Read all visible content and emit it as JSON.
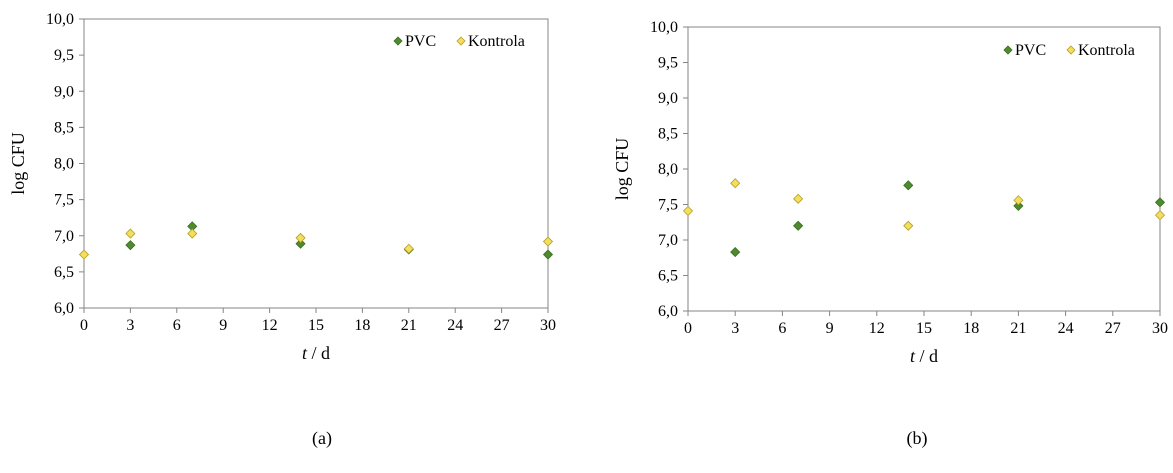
{
  "chart_data": [
    {
      "panel_label": "(a)",
      "type": "scatter",
      "xlabel_italic": "t",
      "xlabel_rest": " / d",
      "ylabel": "log CFU",
      "xlim": [
        0,
        30
      ],
      "ylim": [
        6.0,
        10.0
      ],
      "x_ticks": [
        "0",
        "3",
        "6",
        "9",
        "12",
        "15",
        "18",
        "21",
        "24",
        "27",
        "30"
      ],
      "y_ticks": [
        "6,0",
        "6,5",
        "7,0",
        "7,5",
        "8,0",
        "8,5",
        "9,0",
        "9,5",
        "10,0"
      ],
      "grid": false,
      "legend_position": "top-right",
      "series": [
        {
          "name": "PVC",
          "color": "#4e8a2e",
          "marker": "diamond",
          "points": [
            [
              3,
              6.87
            ],
            [
              7,
              7.13
            ],
            [
              14,
              6.89
            ],
            [
              21,
              6.81
            ],
            [
              30,
              6.74
            ]
          ]
        },
        {
          "name": "Kontrola",
          "color": "#f2df5c",
          "marker": "diamond",
          "points": [
            [
              0,
              6.74
            ],
            [
              3,
              7.03
            ],
            [
              7,
              7.03
            ],
            [
              14,
              6.97
            ],
            [
              21,
              6.82
            ],
            [
              30,
              6.92
            ]
          ]
        }
      ]
    },
    {
      "panel_label": "(b)",
      "type": "scatter",
      "xlabel_italic": "t",
      "xlabel_rest": " / d",
      "ylabel": "log CFU",
      "xlim": [
        0,
        30
      ],
      "ylim": [
        6.0,
        10.0
      ],
      "x_ticks": [
        "0",
        "3",
        "6",
        "9",
        "12",
        "15",
        "18",
        "21",
        "24",
        "27",
        "30"
      ],
      "y_ticks": [
        "6,0",
        "6,5",
        "7,0",
        "7,5",
        "8,0",
        "8,5",
        "9,0",
        "9,5",
        "10,0"
      ],
      "grid": false,
      "legend_position": "top-right",
      "series": [
        {
          "name": "PVC",
          "color": "#4e8a2e",
          "marker": "diamond",
          "points": [
            [
              3,
              6.83
            ],
            [
              7,
              7.2
            ],
            [
              14,
              7.77
            ],
            [
              21,
              7.48
            ],
            [
              30,
              7.53
            ]
          ]
        },
        {
          "name": "Kontrola",
          "color": "#f2df5c",
          "marker": "diamond",
          "points": [
            [
              0,
              7.41
            ],
            [
              3,
              7.8
            ],
            [
              7,
              7.58
            ],
            [
              14,
              7.2
            ],
            [
              21,
              7.56
            ],
            [
              30,
              7.35
            ]
          ]
        }
      ]
    }
  ]
}
